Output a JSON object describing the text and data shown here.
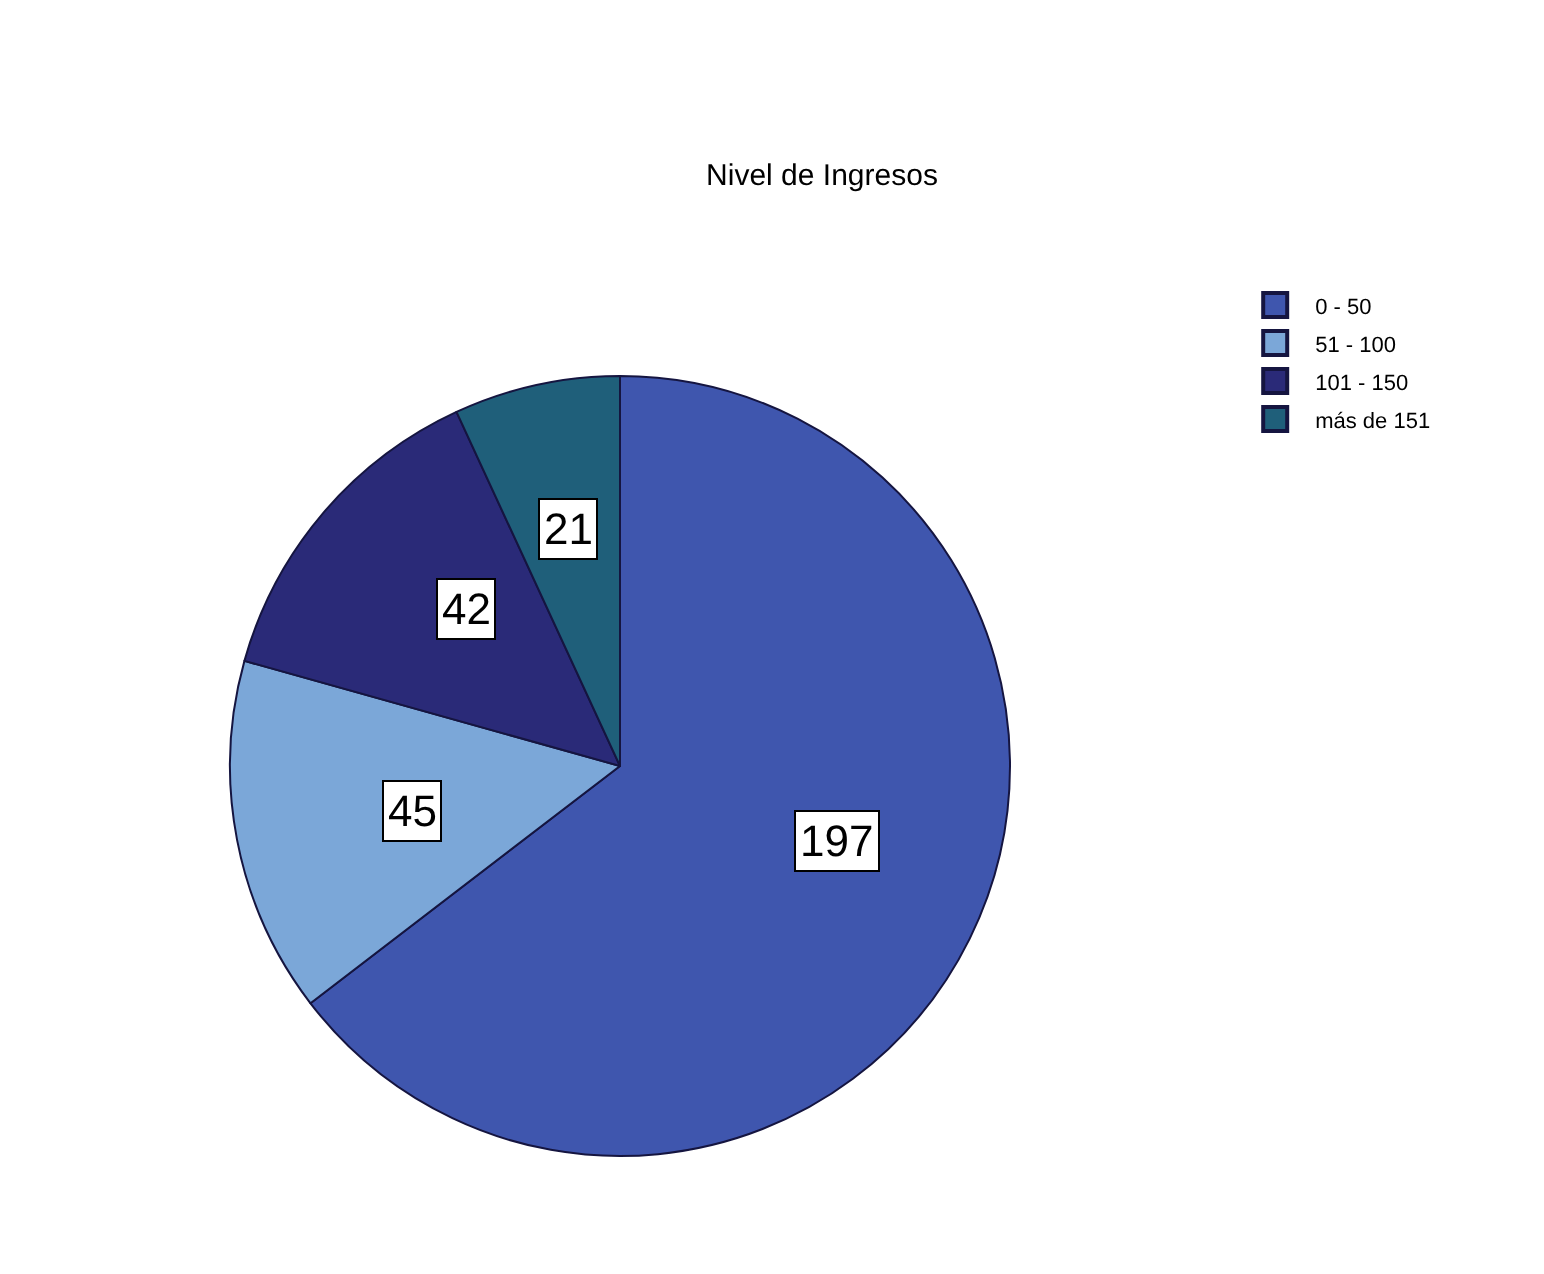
{
  "chart_data": {
    "type": "pie",
    "title": "Nivel de Ingresos",
    "categories": [
      "0 - 50",
      "51 - 100",
      "101 - 150",
      "más de 151"
    ],
    "values": [
      197,
      45,
      42,
      21
    ],
    "colors": [
      "#3f56ae",
      "#7ba7d8",
      "#2a2a78",
      "#1f5f7a"
    ],
    "data_labels": true,
    "legend": "top right"
  }
}
